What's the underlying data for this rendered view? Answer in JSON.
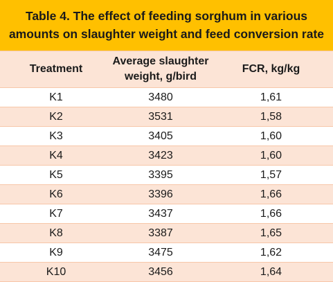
{
  "title": {
    "line1": "Table 4. The effect of feeding sorghum in various",
    "line2": "amounts on slaughter weight and feed conversion rate"
  },
  "columns": {
    "treatment": "Treatment",
    "weight_line1": "Average slaughter",
    "weight_line2": "weight, g/bird",
    "fcr": "FCR, kg/kg"
  },
  "rows": [
    {
      "treatment": "K1",
      "weight": "3480",
      "fcr": "1,61"
    },
    {
      "treatment": "K2",
      "weight": "3531",
      "fcr": "1,58"
    },
    {
      "treatment": "K3",
      "weight": "3405",
      "fcr": "1,60"
    },
    {
      "treatment": "K4",
      "weight": "3423",
      "fcr": "1,60"
    },
    {
      "treatment": "K5",
      "weight": "3395",
      "fcr": "1,57"
    },
    {
      "treatment": "K6",
      "weight": "3396",
      "fcr": "1,66"
    },
    {
      "treatment": "K7",
      "weight": "3437",
      "fcr": "1,66"
    },
    {
      "treatment": "K8",
      "weight": "3387",
      "fcr": "1,65"
    },
    {
      "treatment": "K9",
      "weight": "3475",
      "fcr": "1,62"
    },
    {
      "treatment": "K10",
      "weight": "3456",
      "fcr": "1,64"
    }
  ],
  "colors": {
    "title_bg": "#ffc000",
    "stripe_bg": "#fce4d6",
    "border": "#f7c6a8"
  }
}
